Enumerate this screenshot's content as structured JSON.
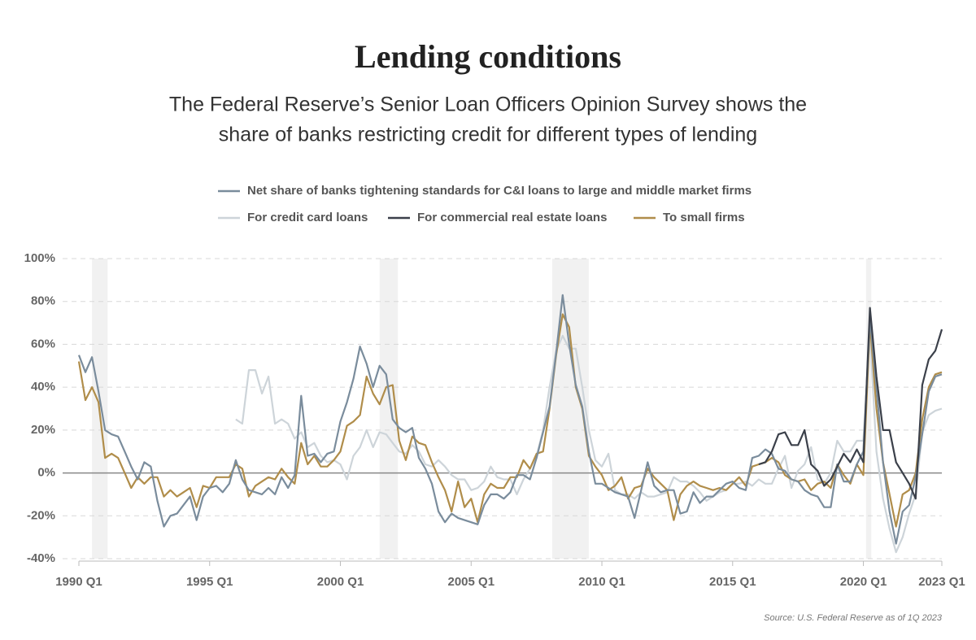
{
  "chart_data": {
    "type": "line",
    "title": "Lending conditions",
    "subtitle": [
      "The Federal Reserve’s Senior Loan Officers Opinion Survey shows the",
      "share of banks restricting credit for different types of lending"
    ],
    "source": "Source: U.S. Federal Reserve as of 1Q 2023",
    "xlim": [
      1990,
      2023
    ],
    "xticks": [
      {
        "value": 1990,
        "label": "1990 Q1"
      },
      {
        "value": 1995,
        "label": "1995 Q1"
      },
      {
        "value": 2000,
        "label": "2000 Q1"
      },
      {
        "value": 2005,
        "label": "2005 Q1"
      },
      {
        "value": 2010,
        "label": "2010 Q1"
      },
      {
        "value": 2015,
        "label": "2015 Q1"
      },
      {
        "value": 2020,
        "label": "2020 Q1"
      },
      {
        "value": 2023,
        "label": "2023 Q1"
      }
    ],
    "ylim": [
      -40,
      100
    ],
    "yticks": [
      {
        "value": -40,
        "label": "-40%"
      },
      {
        "value": -20,
        "label": "-20%"
      },
      {
        "value": 0,
        "label": "0%"
      },
      {
        "value": 20,
        "label": "20%"
      },
      {
        "value": 40,
        "label": "40%"
      },
      {
        "value": 60,
        "label": "60%"
      },
      {
        "value": 80,
        "label": "80%"
      },
      {
        "value": 100,
        "label": "100%"
      }
    ],
    "grid": true,
    "shaded_periods": [
      [
        1990.5,
        1991.1
      ],
      [
        2001.5,
        2002.2
      ],
      [
        2008.1,
        2009.5
      ],
      [
        2020.1,
        2020.3
      ]
    ],
    "x": [
      1990,
      1990.25,
      1990.5,
      1990.75,
      1991,
      1991.25,
      1991.5,
      1991.75,
      1992,
      1992.25,
      1992.5,
      1992.75,
      1993,
      1993.25,
      1993.5,
      1993.75,
      1994,
      1994.25,
      1994.5,
      1994.75,
      1995,
      1995.25,
      1995.5,
      1995.75,
      1996,
      1996.25,
      1996.5,
      1996.75,
      1997,
      1997.25,
      1997.5,
      1997.75,
      1998,
      1998.25,
      1998.5,
      1998.75,
      1999,
      1999.25,
      1999.5,
      1999.75,
      2000,
      2000.25,
      2000.5,
      2000.75,
      2001,
      2001.25,
      2001.5,
      2001.75,
      2002,
      2002.25,
      2002.5,
      2002.75,
      2003,
      2003.25,
      2003.5,
      2003.75,
      2004,
      2004.25,
      2004.5,
      2004.75,
      2005,
      2005.25,
      2005.5,
      2005.75,
      2006,
      2006.25,
      2006.5,
      2006.75,
      2007,
      2007.25,
      2007.5,
      2007.75,
      2008,
      2008.25,
      2008.5,
      2008.75,
      2009,
      2009.25,
      2009.5,
      2009.75,
      2010,
      2010.25,
      2010.5,
      2010.75,
      2011,
      2011.25,
      2011.5,
      2011.75,
      2012,
      2012.25,
      2012.5,
      2012.75,
      2013,
      2013.25,
      2013.5,
      2013.75,
      2014,
      2014.25,
      2014.5,
      2014.75,
      2015,
      2015.25,
      2015.5,
      2015.75,
      2016,
      2016.25,
      2016.5,
      2016.75,
      2017,
      2017.25,
      2017.5,
      2017.75,
      2018,
      2018.25,
      2018.5,
      2018.75,
      2019,
      2019.25,
      2019.5,
      2019.75,
      2020,
      2020.25,
      2020.5,
      2020.75,
      2021,
      2021.25,
      2021.5,
      2021.75,
      2022,
      2022.25,
      2022.5,
      2022.75,
      2023
    ],
    "series": [
      {
        "name": "For credit card loans",
        "color": "#cdd4d9",
        "values": [
          null,
          null,
          null,
          null,
          null,
          null,
          null,
          null,
          null,
          null,
          null,
          null,
          null,
          null,
          null,
          null,
          null,
          null,
          null,
          null,
          null,
          null,
          null,
          null,
          25,
          23,
          48,
          48,
          37,
          45,
          23,
          25,
          23,
          16,
          19,
          12,
          14,
          8,
          5,
          6,
          4,
          -3,
          8,
          12,
          20,
          12,
          19,
          18,
          14,
          10,
          9,
          13,
          10,
          4,
          3,
          6,
          3,
          -1,
          -3,
          -3,
          -8,
          -7,
          -4,
          3,
          -2,
          -3,
          -3,
          -10,
          -3,
          2,
          8,
          20,
          40,
          57,
          64,
          58,
          58,
          40,
          20,
          6,
          3,
          9,
          -8,
          -10,
          -10,
          -12,
          -9,
          -11,
          -11,
          -10,
          -9,
          -2,
          -4,
          -4,
          -6,
          -9,
          -13,
          -11,
          -9,
          -8,
          -5,
          -5,
          -4,
          -6,
          -3,
          -5,
          -5,
          2,
          8,
          -7,
          1,
          4,
          12,
          -3,
          -5,
          0,
          15,
          10,
          10,
          15,
          15,
          65,
          10,
          -12,
          -26,
          -37,
          -30,
          -19,
          -10,
          19,
          27,
          29,
          30
        ]
      },
      {
        "name": "To small firms",
        "color": "#b08d4a",
        "values": [
          52,
          34,
          40,
          33,
          7,
          9,
          7,
          0,
          -7,
          -2,
          -5,
          -2,
          -2,
          -11,
          -8,
          -11,
          -9,
          -7,
          -16,
          -6,
          -7,
          -2,
          -2,
          -2,
          4,
          2,
          -11,
          -6,
          -4,
          -2,
          -3,
          2,
          -2,
          -5,
          14,
          4,
          8,
          3,
          3,
          6,
          10,
          22,
          24,
          27,
          45,
          37,
          32,
          40,
          41,
          15,
          6,
          17,
          14,
          13,
          5,
          -2,
          -8,
          -18,
          -4,
          -16,
          -12,
          -23,
          -10,
          -5,
          -7,
          -7,
          -2,
          -2,
          6,
          2,
          9,
          10,
          30,
          55,
          74,
          68,
          40,
          30,
          8,
          3,
          -1,
          -8,
          -6,
          -2,
          -12,
          -7,
          -6,
          2,
          -2,
          -5,
          -8,
          -22,
          -10,
          -6,
          -4,
          -6,
          -7,
          -8,
          -7,
          -8,
          -5,
          -2,
          -6,
          3,
          4,
          5,
          7,
          5,
          -1,
          -3,
          -4,
          -3,
          -8,
          -5,
          -4,
          -7,
          4,
          -1,
          -5,
          4,
          -1,
          70,
          30,
          5,
          -10,
          -25,
          -10,
          -8,
          0,
          25,
          40,
          46,
          47
        ]
      },
      {
        "name": "Net share of banks tightening standards for C&I loans to large and middle market firms",
        "color": "#7a8c9c",
        "values": [
          55,
          47,
          54,
          38,
          20,
          18,
          17,
          10,
          3,
          -3,
          5,
          3,
          -13,
          -25,
          -20,
          -19,
          -15,
          -11,
          -22,
          -11,
          -7,
          -6,
          -9,
          -5,
          6,
          -3,
          -8,
          -9,
          -10,
          -7,
          -10,
          -2,
          -7,
          -1,
          36,
          8,
          9,
          5,
          9,
          10,
          24,
          33,
          44,
          59,
          51,
          40,
          50,
          46,
          25,
          21,
          19,
          21,
          7,
          2,
          -5,
          -18,
          -23,
          -19,
          -21,
          -22,
          -23,
          -24,
          -15,
          -10,
          -10,
          -12,
          -9,
          -1,
          -1,
          -3,
          7,
          19,
          31,
          56,
          83,
          60,
          41,
          31,
          10,
          -5,
          -5,
          -7,
          -9,
          -10,
          -11,
          -21,
          -8,
          5,
          -6,
          -9,
          -8,
          -8,
          -19,
          -18,
          -9,
          -14,
          -11,
          -11,
          -8,
          -5,
          -4,
          -7,
          -8,
          7,
          8,
          11,
          9,
          2,
          1,
          -3,
          -4,
          -8,
          -10,
          -11,
          -16,
          -16,
          4,
          -4,
          -4,
          4,
          10,
          72,
          40,
          5,
          -18,
          -33,
          -18,
          -15,
          -2,
          18,
          38,
          45,
          46
        ]
      },
      {
        "name": "For commercial real estate loans",
        "color": "#3b404a",
        "values": [
          null,
          null,
          null,
          null,
          null,
          null,
          null,
          null,
          null,
          null,
          null,
          null,
          null,
          null,
          null,
          null,
          null,
          null,
          null,
          null,
          null,
          null,
          null,
          null,
          null,
          null,
          null,
          null,
          null,
          null,
          null,
          null,
          null,
          null,
          null,
          null,
          null,
          null,
          null,
          null,
          null,
          null,
          null,
          null,
          null,
          null,
          null,
          null,
          null,
          null,
          null,
          null,
          null,
          null,
          null,
          null,
          null,
          null,
          null,
          null,
          null,
          null,
          null,
          null,
          null,
          null,
          null,
          null,
          null,
          null,
          null,
          null,
          null,
          null,
          null,
          null,
          null,
          null,
          null,
          null,
          null,
          null,
          null,
          null,
          null,
          null,
          null,
          null,
          null,
          null,
          null,
          null,
          null,
          null,
          null,
          null,
          null,
          null,
          null,
          null,
          null,
          null,
          null,
          null,
          4,
          5,
          10,
          18,
          19,
          13,
          13,
          20,
          4,
          1,
          -6,
          -3,
          3,
          9,
          5,
          11,
          5,
          77,
          45,
          20,
          20,
          5,
          0,
          -5,
          -12,
          41,
          53,
          57,
          67
        ]
      }
    ]
  }
}
